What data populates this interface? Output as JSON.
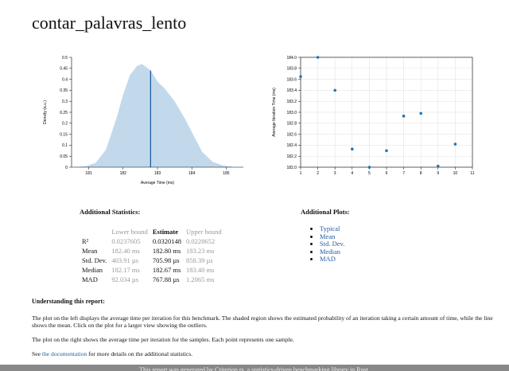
{
  "title": "contar_palavras_lento",
  "density_chart": {
    "type": "area",
    "xlabel": "Average Time (ms)",
    "ylabel": "Density (a.u.)",
    "xlim": [
      180.5,
      185.5
    ],
    "ylim": [
      0,
      0.5
    ],
    "x_ticks": [
      181,
      182,
      183,
      184,
      185
    ],
    "y_ticks": [
      0,
      0.05,
      0.1,
      0.15,
      0.2,
      0.25,
      0.3,
      0.35,
      0.4,
      0.45,
      0.5
    ],
    "x": [
      180.6,
      180.9,
      181.2,
      181.5,
      181.8,
      182.0,
      182.2,
      182.4,
      182.55,
      182.8,
      183.0,
      183.2,
      183.5,
      183.8,
      184.0,
      184.3,
      184.6,
      184.9,
      185.2
    ],
    "y": [
      0.001,
      0.004,
      0.02,
      0.08,
      0.22,
      0.33,
      0.42,
      0.46,
      0.47,
      0.44,
      0.39,
      0.36,
      0.3,
      0.22,
      0.16,
      0.07,
      0.025,
      0.008,
      0.002
    ],
    "mean_line": 182.8,
    "fill_color": "#c2d9ec",
    "line_color": "#1f5fa6"
  },
  "iteration_chart": {
    "type": "scatter",
    "xlabel": "",
    "ylabel": "Average Iteration Time (ms)",
    "xlim": [
      1,
      11
    ],
    "ylim": [
      182.0,
      184.0
    ],
    "x_ticks": [
      1,
      2,
      3,
      4,
      5,
      6,
      7,
      8,
      9,
      10,
      11
    ],
    "y_ticks": [
      182.0,
      182.2,
      182.4,
      182.6,
      182.8,
      183.0,
      183.2,
      183.4,
      183.6,
      183.8,
      184.0
    ],
    "x": [
      1,
      2,
      3,
      4,
      5,
      6,
      7,
      8,
      9,
      10
    ],
    "y": [
      183.65,
      184.0,
      183.4,
      182.33,
      182.0,
      182.3,
      182.93,
      182.98,
      182.02,
      182.42
    ],
    "point_color": "#1f77b4"
  },
  "stats": {
    "heading": "Additional Statistics:",
    "col_lower": "Lower bound",
    "col_estimate": "Estimate",
    "col_upper": "Upper bound",
    "rows": [
      {
        "label": "R²",
        "lower": "0.0237605",
        "estimate": "0.0320148",
        "upper": "0.0228652"
      },
      {
        "label": "Mean",
        "lower": "182.40 ms",
        "estimate": "182.80 ms",
        "upper": "183.23 ms"
      },
      {
        "label": "Std. Dev.",
        "lower": "403.91 µs",
        "estimate": "705.98 µs",
        "upper": "858.39 µs"
      },
      {
        "label": "Median",
        "lower": "182.17 ms",
        "estimate": "182.67 ms",
        "upper": "183.40 ms"
      },
      {
        "label": "MAD",
        "lower": "92.034 µs",
        "estimate": "767.88 µs",
        "upper": "1.2065 ms"
      }
    ]
  },
  "plots": {
    "heading": "Additional Plots:",
    "links": [
      "Typical",
      "Mean",
      "Std. Dev.",
      "Median",
      "MAD"
    ]
  },
  "understanding": {
    "heading": "Understanding this report:",
    "p1": "The plot on the left displays the average time per iteration for this benchmark. The shaded region shows the estimated probability of an iteration taking a certain amount of time, while the line shows the mean. Click on the plot for a larger view showing the outliers.",
    "p2": "The plot on the right shows the average time per iteration for the samples. Each point represents one sample.",
    "p3_before": "See ",
    "p3_link": "the documentation",
    "p3_after": " for more details on the additional statistics."
  },
  "footer": "This report was generated by Criterion.rs, a statistics-driven benchmarking library in Rust."
}
